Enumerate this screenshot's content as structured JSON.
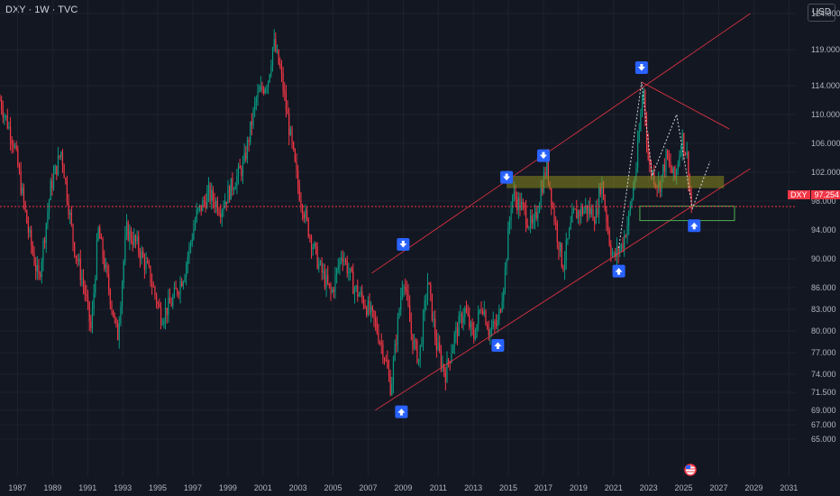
{
  "header": {
    "symbol_title": "DXY · 1W · TVC",
    "currency": "USD"
  },
  "price_tag": {
    "symbol": "DXY",
    "value": "97.254"
  },
  "colors": {
    "background": "#131722",
    "grid": "#1e222d",
    "up_candle": "#089981",
    "down_candle": "#f23645",
    "channel": "#f23645",
    "arrow_marker": "#2962ff",
    "resistance_zone": "#8a8a1e",
    "support_box": "#4caf50",
    "axis_text": "#b2b5be",
    "forecast_path": "#cfd8dc"
  },
  "chart_data": {
    "type": "candlestick",
    "title": "DXY · 1W · TVC",
    "ylabel": "USD",
    "xlim": [
      1986.0,
      2032.0
    ],
    "ylim": [
      63.5,
      128.5
    ],
    "y_ticks": [
      "65.000",
      "67.000",
      "69.000",
      "71.500",
      "74.000",
      "77.000",
      "80.000",
      "83.000",
      "86.000",
      "90.000",
      "94.000",
      "98.000",
      "102.000",
      "106.000",
      "110.000",
      "114.000",
      "119.000",
      "124.000"
    ],
    "x_ticks": [
      "1987",
      "1989",
      "1991",
      "1993",
      "1995",
      "1997",
      "1999",
      "2001",
      "2003",
      "2005",
      "2007",
      "2009",
      "2011",
      "2013",
      "2015",
      "2017",
      "2019",
      "2021",
      "2023",
      "2025",
      "2027",
      "2029",
      "2031"
    ],
    "last_price": 97.254,
    "price_path": [
      [
        1986.0,
        112
      ],
      [
        1986.8,
        106
      ],
      [
        1987.6,
        94
      ],
      [
        1988.2,
        87
      ],
      [
        1988.9,
        100
      ],
      [
        1989.5,
        105
      ],
      [
        1990.2,
        92
      ],
      [
        1990.8,
        86
      ],
      [
        1991.2,
        80
      ],
      [
        1991.6,
        94
      ],
      [
        1992.2,
        86
      ],
      [
        1992.7,
        79
      ],
      [
        1993.2,
        94
      ],
      [
        1993.8,
        92
      ],
      [
        1994.5,
        88
      ],
      [
        1995.2,
        82
      ],
      [
        1995.8,
        84
      ],
      [
        1996.5,
        88
      ],
      [
        1997.2,
        96
      ],
      [
        1997.9,
        99
      ],
      [
        1998.6,
        97
      ],
      [
        1999.2,
        100
      ],
      [
        1999.9,
        103
      ],
      [
        2000.6,
        112
      ],
      [
        2001.3,
        115
      ],
      [
        2001.6,
        120
      ],
      [
        2002.0,
        116
      ],
      [
        2002.5,
        108
      ],
      [
        2003.0,
        100
      ],
      [
        2003.6,
        94
      ],
      [
        2004.2,
        89
      ],
      [
        2004.9,
        85
      ],
      [
        2005.5,
        91
      ],
      [
        2006.2,
        86
      ],
      [
        2006.8,
        84
      ],
      [
        2007.4,
        81
      ],
      [
        2007.9,
        77
      ],
      [
        2008.3,
        72
      ],
      [
        2008.6,
        79
      ],
      [
        2009.0,
        88
      ],
      [
        2009.5,
        79
      ],
      [
        2009.9,
        76
      ],
      [
        2010.4,
        87
      ],
      [
        2010.9,
        78
      ],
      [
        2011.4,
        74
      ],
      [
        2011.9,
        79
      ],
      [
        2012.5,
        83
      ],
      [
        2013.0,
        79
      ],
      [
        2013.5,
        84
      ],
      [
        2013.9,
        80
      ],
      [
        2014.4,
        81
      ],
      [
        2014.8,
        88
      ],
      [
        2015.2,
        99
      ],
      [
        2015.8,
        97
      ],
      [
        2016.4,
        94
      ],
      [
        2016.9,
        100
      ],
      [
        2017.2,
        103
      ],
      [
        2017.6,
        96
      ],
      [
        2018.1,
        89
      ],
      [
        2018.7,
        96
      ],
      [
        2019.4,
        97
      ],
      [
        2020.0,
        96
      ],
      [
        2020.3,
        101
      ],
      [
        2020.8,
        92
      ],
      [
        2021.0,
        90
      ],
      [
        2021.5,
        92
      ],
      [
        2021.9,
        96
      ],
      [
        2022.3,
        103
      ],
      [
        2022.7,
        114
      ],
      [
        2023.0,
        103
      ],
      [
        2023.6,
        100
      ],
      [
        2024.0,
        104
      ],
      [
        2024.5,
        101
      ],
      [
        2024.9,
        107
      ],
      [
        2025.2,
        104
      ],
      [
        2025.4,
        98
      ],
      [
        2025.5,
        97.25
      ]
    ],
    "annotations": {
      "channel_upper": [
        [
          2007.2,
          88.0
        ],
        [
          2028.8,
          124.0
        ]
      ],
      "channel_lower": [
        [
          2007.4,
          69.0
        ],
        [
          2028.8,
          102.5
        ]
      ],
      "trend_line": [
        [
          2022.6,
          114.5
        ],
        [
          2027.6,
          108.0
        ]
      ],
      "resistance_zone": {
        "x": [
          2014.9,
          2027.3
        ],
        "y": [
          99.8,
          101.5
        ]
      },
      "support_box": {
        "x": [
          2022.5,
          2027.9
        ],
        "y": [
          95.3,
          97.3
        ]
      },
      "sell_arrows": [
        [
          2009.0,
          92.0
        ],
        [
          2014.9,
          101.3
        ],
        [
          2017.0,
          104.3
        ],
        [
          2022.6,
          116.5
        ]
      ],
      "buy_arrows": [
        [
          2008.9,
          68.8
        ],
        [
          2014.4,
          78.0
        ],
        [
          2021.3,
          88.3
        ],
        [
          2025.6,
          94.6
        ]
      ],
      "forecast_path": [
        [
          2021.3,
          91.5
        ],
        [
          2022.6,
          114.5
        ],
        [
          2023.2,
          101.5
        ],
        [
          2024.6,
          110.0
        ],
        [
          2025.5,
          97.0
        ],
        [
          2026.5,
          103.5
        ]
      ]
    }
  }
}
